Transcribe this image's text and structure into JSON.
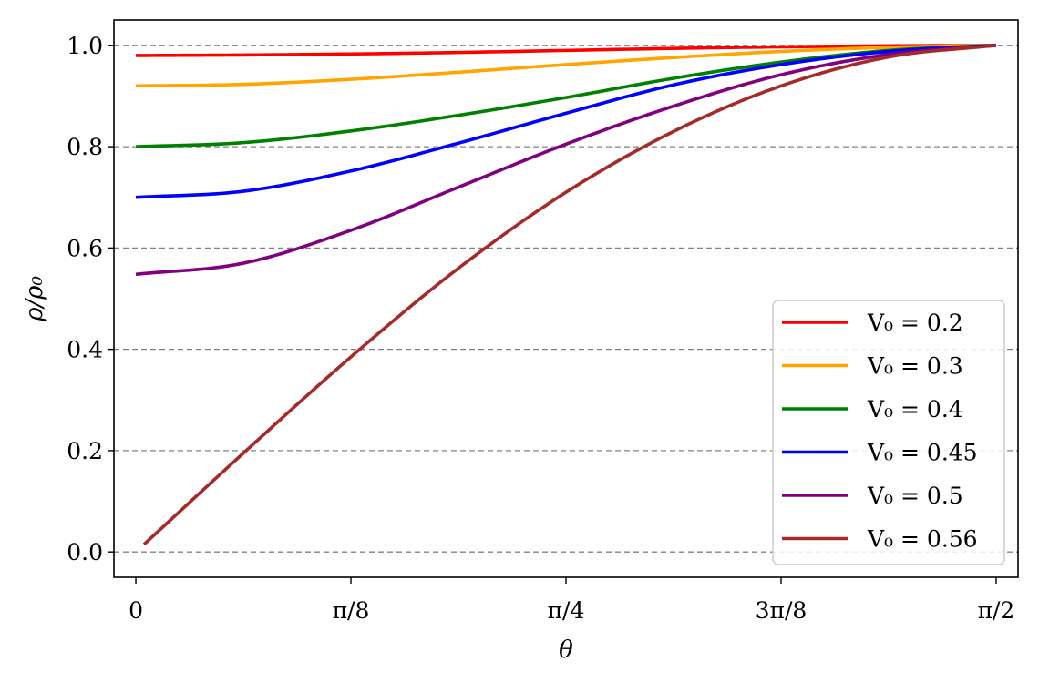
{
  "chart_data": {
    "type": "line",
    "xlabel": "θ",
    "ylabel": "ρ/ρ₀",
    "xlim": [
      -0.04,
      1.6108
    ],
    "ylim": [
      -0.05,
      1.05
    ],
    "x_ticks": [
      {
        "value": 0,
        "label": "0"
      },
      {
        "value": 0.3927,
        "label": "π/8"
      },
      {
        "value": 0.7854,
        "label": "π/4"
      },
      {
        "value": 1.1781,
        "label": "3π/8"
      },
      {
        "value": 1.5708,
        "label": "π/2"
      }
    ],
    "y_ticks": [
      {
        "value": 0.0,
        "label": "0.0"
      },
      {
        "value": 0.2,
        "label": "0.2"
      },
      {
        "value": 0.4,
        "label": "0.4"
      },
      {
        "value": 0.6,
        "label": "0.6"
      },
      {
        "value": 0.8,
        "label": "0.8"
      },
      {
        "value": 1.0,
        "label": "1.0"
      }
    ],
    "grid": {
      "axis": "y",
      "style": "dashed",
      "color": "#808080"
    },
    "legend_position": "lower-right",
    "series": [
      {
        "name": "V₀ = 0.2",
        "color": "#ff0000",
        "x": [
          0.0,
          0.1963,
          0.3927,
          0.589,
          0.7854,
          0.9817,
          1.1781,
          1.3744,
          1.5708
        ],
        "y": [
          0.98,
          0.981,
          0.983,
          0.986,
          0.99,
          0.994,
          0.997,
          0.999,
          1.0
        ]
      },
      {
        "name": "V₀ = 0.3",
        "color": "#ffa500",
        "x": [
          0.0,
          0.1963,
          0.3927,
          0.589,
          0.7854,
          0.9817,
          1.1781,
          1.3744,
          1.5708
        ],
        "y": [
          0.92,
          0.923,
          0.933,
          0.947,
          0.962,
          0.976,
          0.988,
          0.996,
          1.0
        ]
      },
      {
        "name": "V₀ = 0.4",
        "color": "#008000",
        "x": [
          0.0,
          0.1963,
          0.3927,
          0.589,
          0.7854,
          0.9817,
          1.1781,
          1.3744,
          1.5708
        ],
        "y": [
          0.8,
          0.808,
          0.831,
          0.862,
          0.897,
          0.935,
          0.967,
          0.99,
          1.0
        ]
      },
      {
        "name": "V₀ = 0.45",
        "color": "#0000ff",
        "x": [
          0.0,
          0.1963,
          0.3927,
          0.589,
          0.7854,
          0.9817,
          1.1781,
          1.3744,
          1.5708
        ],
        "y": [
          0.7,
          0.712,
          0.752,
          0.807,
          0.866,
          0.922,
          0.962,
          0.988,
          1.0
        ]
      },
      {
        "name": "V₀ = 0.5",
        "color": "#800080",
        "x": [
          0.0,
          0.1963,
          0.3927,
          0.589,
          0.7854,
          0.9817,
          1.1781,
          1.3744,
          1.5708
        ],
        "y": [
          0.548,
          0.57,
          0.635,
          0.72,
          0.805,
          0.88,
          0.942,
          0.982,
          1.0
        ]
      },
      {
        "name": "V₀ = 0.56",
        "color": "#a52a2a",
        "x": [
          0.015,
          0.1963,
          0.3927,
          0.589,
          0.7854,
          0.9817,
          1.1781,
          1.3744,
          1.5708
        ],
        "y": [
          0.015,
          0.195,
          0.385,
          0.56,
          0.71,
          0.83,
          0.92,
          0.977,
          1.0
        ]
      }
    ]
  }
}
